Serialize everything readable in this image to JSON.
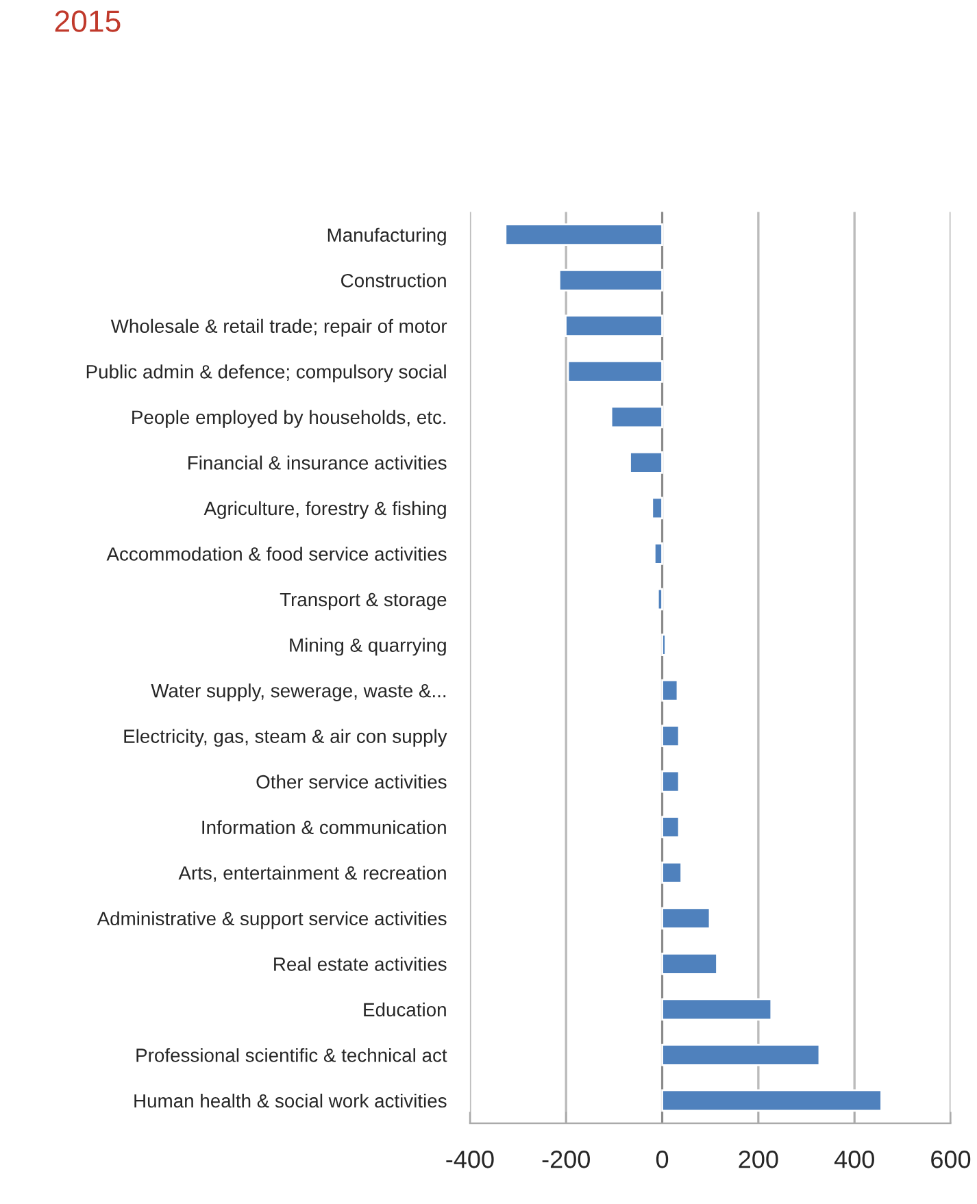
{
  "chart_data": {
    "type": "bar",
    "orientation": "horizontal",
    "title": "2015",
    "categories": [
      "Manufacturing",
      "Construction",
      "Wholesale & retail trade; repair of motor",
      "Public admin & defence; compulsory social",
      "People employed by households, etc.",
      "Financial & insurance activities",
      "Agriculture, forestry & fishing",
      "Accommodation & food service activities",
      "Transport & storage",
      "Mining & quarrying",
      "Water supply, sewerage, waste &...",
      "Electricity, gas, steam & air con supply",
      "Other service activities",
      "Information & communication",
      "Arts, entertainment & recreation",
      "Administrative & support service activities",
      "Real estate activities",
      "Education",
      "Professional scientific & technical act",
      "Human health & social work activities"
    ],
    "values": [
      -326,
      -214,
      -201,
      -196,
      -106,
      -67,
      -21,
      -16,
      -9,
      7,
      32,
      35,
      35,
      35,
      40,
      99,
      114,
      227,
      327,
      456
    ],
    "color": "#4f81bd",
    "xlim": [
      -400,
      600
    ],
    "xticks": [
      -400,
      -200,
      0,
      200,
      400,
      600
    ],
    "grid": "x"
  }
}
